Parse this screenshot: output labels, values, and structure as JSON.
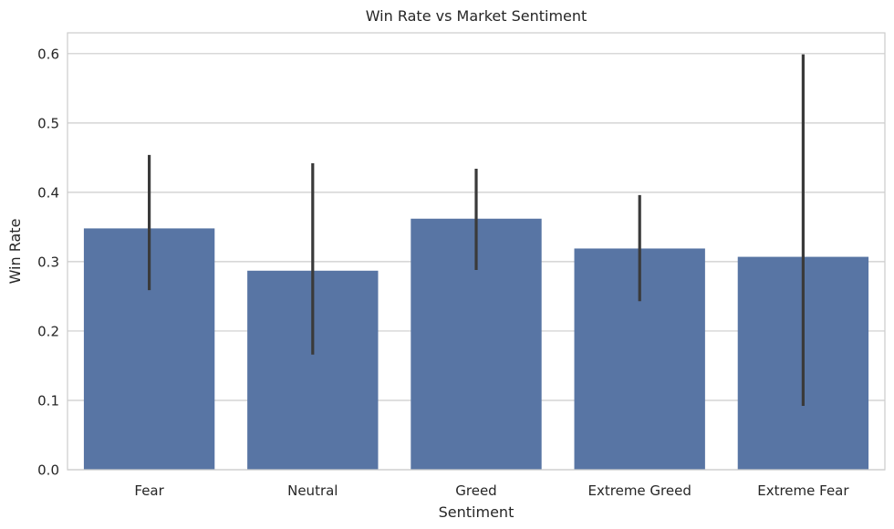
{
  "chart_data": {
    "type": "bar",
    "title": "Win Rate vs Market Sentiment",
    "xlabel": "Sentiment",
    "ylabel": "Win Rate",
    "categories": [
      "Fear",
      "Neutral",
      "Greed",
      "Extreme Greed",
      "Extreme Fear"
    ],
    "values": [
      0.348,
      0.287,
      0.362,
      0.319,
      0.307
    ],
    "error_low": [
      0.259,
      0.166,
      0.288,
      0.243,
      0.092
    ],
    "error_high": [
      0.454,
      0.442,
      0.434,
      0.396,
      0.599
    ],
    "ylim": [
      0,
      0.63
    ],
    "yticks": [
      0.0,
      0.1,
      0.2,
      0.3,
      0.4,
      0.5,
      0.6
    ],
    "ytick_labels": [
      "0.0",
      "0.1",
      "0.2",
      "0.3",
      "0.4",
      "0.5",
      "0.6"
    ],
    "grid": true,
    "bar_color": "#5875a4",
    "error_color": "#3a3a3a",
    "grid_color": "#cccccc"
  }
}
